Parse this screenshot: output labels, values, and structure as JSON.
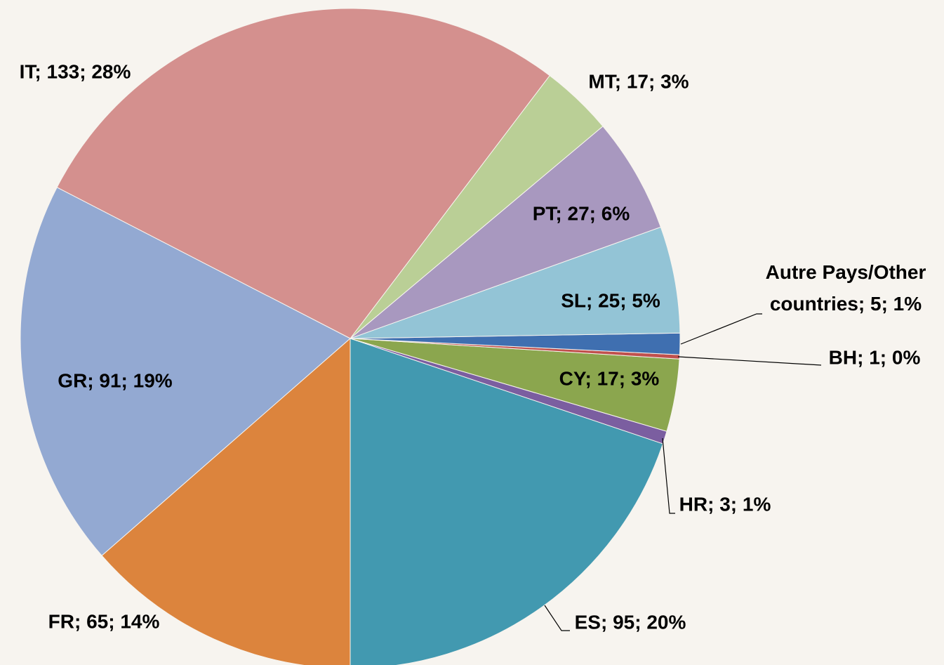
{
  "chart_data": {
    "type": "pie",
    "categories": [
      "ES",
      "HR",
      "CY",
      "BH",
      "Autre Pays/Other countries",
      "SL",
      "PT",
      "MT",
      "IT",
      "GR",
      "FR"
    ],
    "values": [
      95,
      3,
      17,
      1,
      5,
      25,
      27,
      17,
      133,
      91,
      65
    ],
    "value_labels": [
      "ES; 95; 20%",
      "HR; 3; 1%",
      "CY; 17; 3%",
      "BH; 1; 0%",
      "Autre Pays/Other countries; 5; 1%",
      "SL; 25; 5%",
      "PT; 27; 6%",
      "MT; 17; 3%",
      "IT; 133; 28%",
      "GR; 91; 19%",
      "FR; 65; 14%"
    ],
    "colors": [
      "#4299b0",
      "#7b5ea0",
      "#8ba64e",
      "#c0504d",
      "#3f6fb0",
      "#93c4d6",
      "#a898bf",
      "#bacf96",
      "#d4908e",
      "#93a9d2",
      "#dc843d"
    ]
  }
}
